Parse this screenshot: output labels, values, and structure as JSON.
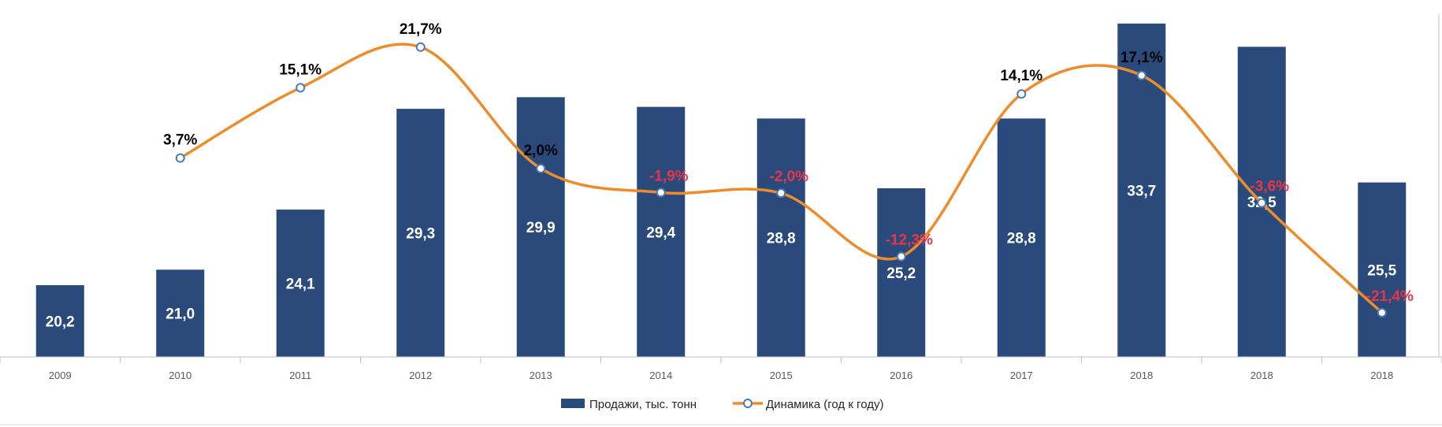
{
  "chart_data": {
    "type": "bar",
    "categories": [
      "2009",
      "2010",
      "2011",
      "2012",
      "2013",
      "2014",
      "2015",
      "2016",
      "2017",
      "2018",
      "2018",
      "2018"
    ],
    "series": [
      {
        "name": "Продажи, тыс. тонн",
        "type": "bar",
        "values": [
          20.2,
          21.0,
          24.1,
          29.3,
          29.9,
          29.4,
          28.8,
          25.2,
          28.8,
          33.7,
          32.5,
          25.5
        ],
        "labels": [
          "20,2",
          "21,0",
          "24,1",
          "29,3",
          "29,9",
          "29,4",
          "28,8",
          "25,2",
          "28,8",
          "33,7",
          "32,5",
          "25,5"
        ]
      },
      {
        "name": "Динамика (год к году)",
        "type": "line",
        "values": [
          null,
          3.7,
          15.1,
          21.7,
          2.0,
          -1.9,
          -2.0,
          -12.3,
          14.1,
          17.1,
          -3.6,
          -21.4
        ],
        "labels": [
          "",
          "3,7%",
          "15,1%",
          "21,7%",
          "2,0%",
          "-1,9%",
          "-2,0%",
          "-12,3%",
          "14,1%",
          "17,1%",
          "-3,6%",
          "-21,4%"
        ]
      }
    ],
    "legend": "bottom",
    "grid": false,
    "colors": {
      "bar": "#2a4a7b",
      "line": "#ed8c2b",
      "marker_edge": "#4a79b5",
      "positive_label": "#000000",
      "negative_label": "#e8354a"
    }
  }
}
